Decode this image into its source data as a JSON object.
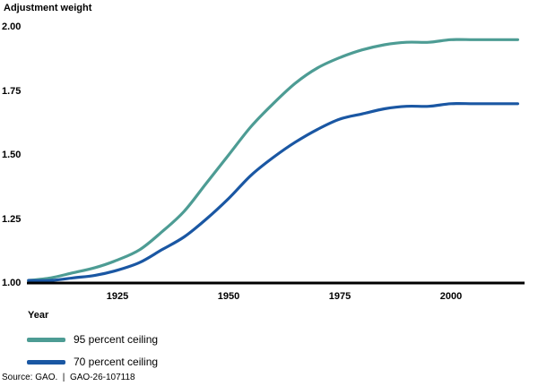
{
  "chart_data": {
    "type": "line",
    "title": "Adjustment weight",
    "xlabel": "Year",
    "ylabel": "Adjustment weight",
    "x_ticks": [
      "1925",
      "1950",
      "1975",
      "2000"
    ],
    "y_ticks": [
      "2.00",
      "1.75",
      "1.50",
      "1.25",
      "1.00"
    ],
    "xlim": [
      1905,
      2016
    ],
    "ylim": [
      1.0,
      2.0
    ],
    "grid": false,
    "legend_position": "bottom-left-below-axis",
    "x": [
      1905,
      1910,
      1915,
      1920,
      1925,
      1930,
      1935,
      1940,
      1945,
      1950,
      1955,
      1960,
      1965,
      1970,
      1975,
      1980,
      1985,
      1990,
      1995,
      2000,
      2005,
      2010,
      2015
    ],
    "series": [
      {
        "name": "95 percent ceiling",
        "color": "#4D9C94",
        "ceiling": 1.95,
        "values": [
          1.01,
          1.02,
          1.04,
          1.06,
          1.09,
          1.13,
          1.2,
          1.28,
          1.39,
          1.5,
          1.61,
          1.7,
          1.78,
          1.84,
          1.88,
          1.91,
          1.93,
          1.94,
          1.94,
          1.95,
          1.95,
          1.95,
          1.95
        ]
      },
      {
        "name": "70 percent ceiling",
        "color": "#1A57A3",
        "ceiling": 1.7,
        "values": [
          1.01,
          1.01,
          1.02,
          1.03,
          1.05,
          1.08,
          1.13,
          1.18,
          1.25,
          1.33,
          1.42,
          1.49,
          1.55,
          1.6,
          1.64,
          1.66,
          1.68,
          1.69,
          1.69,
          1.7,
          1.7,
          1.7,
          1.7
        ]
      }
    ]
  },
  "colors": {
    "axis": "#000000",
    "text": "#000000"
  },
  "source_note": "Source: GAO.  |  GAO-26-107118"
}
